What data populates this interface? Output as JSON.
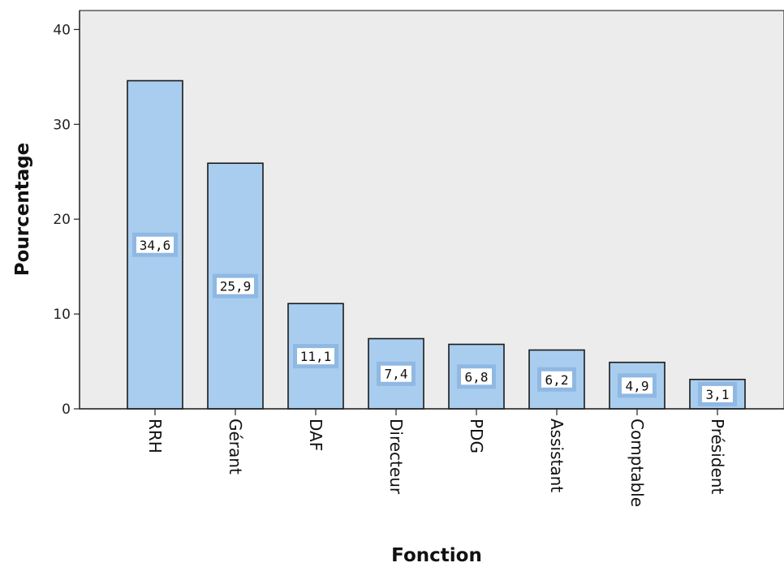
{
  "chart_data": {
    "type": "bar",
    "categories": [
      "RRH",
      "Gérant",
      "DAF",
      "Directeur",
      "PDG",
      "Assistant",
      "Comptable",
      "Président"
    ],
    "values": [
      34.6,
      25.9,
      11.1,
      7.4,
      6.8,
      6.2,
      4.9,
      3.1
    ],
    "data_labels": [
      "34,6",
      "25,9",
      "11,1",
      "7,4",
      "6,8",
      "6,2",
      "4,9",
      "3,1"
    ],
    "title": "",
    "xlabel": "Fonction",
    "ylabel": "Pourcentage",
    "ylim": [
      0,
      42
    ],
    "yticks": [
      0,
      10,
      20,
      30,
      40
    ],
    "ytick_labels": [
      "0",
      "10",
      "20",
      "30",
      "40"
    ],
    "grid": false,
    "colors": {
      "bar_fill": "#a9cdef",
      "bar_edge": "#1a1a1a",
      "plot_background": "#ececec",
      "label_border": "#8fb8e2"
    }
  }
}
